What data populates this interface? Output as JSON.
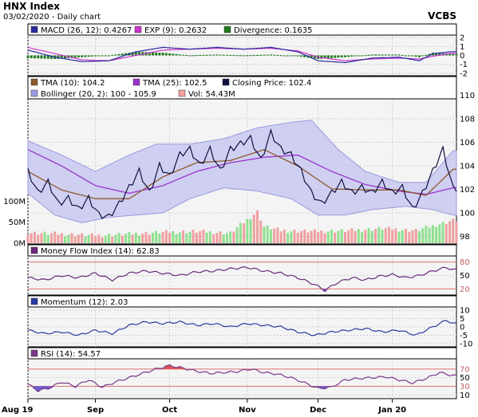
{
  "header": {
    "title": "HNX Index",
    "subtitle": "03/02/2020 - Daily chart",
    "brand": "VCBS"
  },
  "colors": {
    "panel_bg": "#f4f4f4",
    "border": "#000000",
    "grid": "#cfcfcf",
    "band_fill": "#c8c8f0",
    "band_line": "#9a9ae0",
    "macd": "#2a2aa0",
    "exp": "#cc33cc",
    "divergence": "#1f7a1f",
    "tma10": "#8b5a2b",
    "tma25": "#9933cc",
    "close": "#101040",
    "vol_up": "#90e090",
    "vol_down": "#f0a0a0",
    "mfi": "#6a2a7a",
    "momentum": "#2a3aa0",
    "rsi": "#7a3a8a",
    "rsi_over": "#e05050",
    "rsi_under": "#6a5ad0",
    "level_line": "#e07070"
  },
  "panels": [
    {
      "id": "macd",
      "legend": [
        {
          "text": "MACD (26, 12): 0.4267",
          "color": "#2a2aa0"
        },
        {
          "text": "EXP (9): 0.2632",
          "color": "#cc33cc"
        },
        {
          "text": "Divergence: 0.1635",
          "color": "#1f7a1f"
        }
      ],
      "axis": [
        {
          "label": "2",
          "value": 2
        },
        {
          "label": "1",
          "value": 1
        },
        {
          "label": "0",
          "value": 0
        },
        {
          "label": "-1",
          "value": -1
        },
        {
          "label": "-2",
          "value": -2
        }
      ],
      "ylim": [
        -2.1,
        2.1
      ]
    },
    {
      "id": "price",
      "legend": [
        {
          "text": "TMA (10): 104.2",
          "color": "#8b5a2b"
        },
        {
          "text": "TMA (25): 102.5",
          "color": "#9933cc"
        },
        {
          "text": "Closing Price: 102.4",
          "color": "#101040"
        },
        {
          "text": "Bollinger (20, 2): 100 - 105.9",
          "color": "#9a9ae0"
        },
        {
          "text": "Vol: 54.43M",
          "color": "#f0a0a0"
        }
      ],
      "axis": [
        {
          "label": "110",
          "value": 110
        },
        {
          "label": "108",
          "value": 108
        },
        {
          "label": "106",
          "value": 106
        },
        {
          "label": "104",
          "value": 104
        },
        {
          "label": "102",
          "value": 102
        },
        {
          "label": "100",
          "value": 100
        },
        {
          "label": "98",
          "value": 98
        }
      ],
      "vol_axis": [
        {
          "label": "100M",
          "value": 100
        },
        {
          "label": "50M",
          "value": 50
        },
        {
          "label": "0M",
          "value": 0
        }
      ],
      "ylim": [
        97.5,
        110.5
      ]
    },
    {
      "id": "mfi",
      "legend": [
        {
          "text": "Money Flow Index (14): 62.83",
          "color": "#6a2a7a"
        }
      ],
      "axis": [
        {
          "label": "80",
          "value": 80,
          "red": true
        },
        {
          "label": "50",
          "value": 50
        },
        {
          "label": "20",
          "value": 20,
          "red": true
        }
      ],
      "ylim": [
        10,
        90
      ]
    },
    {
      "id": "momentum",
      "legend": [
        {
          "text": "Momentum (12): 2.03",
          "color": "#2a3aa0"
        }
      ],
      "axis": [
        {
          "label": "10",
          "value": 10
        },
        {
          "label": "5",
          "value": 5
        },
        {
          "label": "0",
          "value": 0
        },
        {
          "label": "-5",
          "value": -5
        },
        {
          "label": "-10",
          "value": -10
        }
      ],
      "ylim": [
        -11,
        11
      ]
    },
    {
      "id": "rsi",
      "legend": [
        {
          "text": "RSI (14): 54.57",
          "color": "#7a3a8a"
        }
      ],
      "axis": [
        {
          "label": "70",
          "value": 70,
          "red": true
        },
        {
          "label": "50",
          "value": 50
        },
        {
          "label": "30",
          "value": 30,
          "red": true
        },
        {
          "label": "10",
          "value": 10
        }
      ],
      "ylim": [
        5,
        90
      ]
    }
  ],
  "x_axis": {
    "months": [
      {
        "label": "Aug 19",
        "day": 0
      },
      {
        "label": "Sep",
        "day": 20
      },
      {
        "label": "Oct",
        "day": 42
      },
      {
        "label": "Nov",
        "day": 65
      },
      {
        "label": "Dec",
        "day": 86
      },
      {
        "label": "Jan 20",
        "day": 108
      }
    ],
    "days": 128
  },
  "chart_data": {
    "type": "line",
    "title": "HNX Index",
    "subtitle": "03/02/2020 - Daily chart",
    "x_range_days": [
      0,
      127
    ],
    "price": {
      "close_keypoints": [
        [
          0,
          104
        ],
        [
          3,
          102
        ],
        [
          6,
          103
        ],
        [
          9,
          101
        ],
        [
          12,
          101.5
        ],
        [
          15,
          100.5
        ],
        [
          18,
          101.5
        ],
        [
          21,
          100
        ],
        [
          24,
          99.8
        ],
        [
          27,
          101
        ],
        [
          30,
          102.5
        ],
        [
          33,
          104
        ],
        [
          36,
          102
        ],
        [
          39,
          104.5
        ],
        [
          42,
          103.5
        ],
        [
          45,
          105.5
        ],
        [
          48,
          106
        ],
        [
          51,
          104.5
        ],
        [
          54,
          106
        ],
        [
          57,
          104
        ],
        [
          60,
          106
        ],
        [
          63,
          106.5
        ],
        [
          66,
          107
        ],
        [
          69,
          105
        ],
        [
          72,
          107.5
        ],
        [
          75,
          106
        ],
        [
          78,
          105.5
        ],
        [
          81,
          104
        ],
        [
          84,
          102
        ],
        [
          87,
          101
        ],
        [
          90,
          102
        ],
        [
          93,
          103
        ],
        [
          96,
          102
        ],
        [
          99,
          102.5
        ],
        [
          102,
          102
        ],
        [
          105,
          103
        ],
        [
          108,
          102
        ],
        [
          111,
          102.5
        ],
        [
          114,
          100.5
        ],
        [
          117,
          102
        ],
        [
          120,
          104
        ],
        [
          123,
          106
        ],
        [
          126,
          102.4
        ]
      ],
      "tma10_keypoints": [
        [
          0,
          104
        ],
        [
          10,
          102.3
        ],
        [
          20,
          101.5
        ],
        [
          30,
          101.5
        ],
        [
          40,
          103.5
        ],
        [
          50,
          104.8
        ],
        [
          60,
          105
        ],
        [
          70,
          106
        ],
        [
          80,
          104.5
        ],
        [
          90,
          102.4
        ],
        [
          100,
          102.3
        ],
        [
          110,
          102.3
        ],
        [
          118,
          101.8
        ],
        [
          126,
          104.2
        ]
      ],
      "tma25_keypoints": [
        [
          0,
          106
        ],
        [
          10,
          104.5
        ],
        [
          20,
          102.7
        ],
        [
          30,
          102
        ],
        [
          40,
          102.7
        ],
        [
          50,
          104
        ],
        [
          60,
          104.8
        ],
        [
          70,
          105.3
        ],
        [
          80,
          105.5
        ],
        [
          90,
          104
        ],
        [
          100,
          102.8
        ],
        [
          110,
          102.2
        ],
        [
          118,
          101.9
        ],
        [
          126,
          102.5
        ]
      ],
      "bollinger_upper_keypoints": [
        [
          0,
          106.8
        ],
        [
          10,
          105.5
        ],
        [
          20,
          104
        ],
        [
          30,
          105.5
        ],
        [
          38,
          106.5
        ],
        [
          48,
          106.5
        ],
        [
          58,
          107
        ],
        [
          68,
          108
        ],
        [
          78,
          108.5
        ],
        [
          84,
          108.7
        ],
        [
          92,
          106
        ],
        [
          100,
          104
        ],
        [
          110,
          103
        ],
        [
          118,
          103
        ],
        [
          126,
          105.9
        ]
      ],
      "bollinger_lower_keypoints": [
        [
          0,
          102
        ],
        [
          8,
          100
        ],
        [
          16,
          99.3
        ],
        [
          24,
          99.8
        ],
        [
          32,
          100
        ],
        [
          40,
          100.2
        ],
        [
          48,
          101.5
        ],
        [
          58,
          102.5
        ],
        [
          68,
          102.2
        ],
        [
          78,
          101.5
        ],
        [
          86,
          100
        ],
        [
          94,
          100
        ],
        [
          102,
          100.5
        ],
        [
          112,
          100.8
        ],
        [
          120,
          100.5
        ],
        [
          126,
          100
        ]
      ],
      "volume_keypoints_m": [
        [
          0,
          25
        ],
        [
          10,
          22
        ],
        [
          20,
          18
        ],
        [
          30,
          22
        ],
        [
          40,
          26
        ],
        [
          50,
          28
        ],
        [
          60,
          24
        ],
        [
          68,
          75
        ],
        [
          70,
          40
        ],
        [
          75,
          30
        ],
        [
          85,
          28
        ],
        [
          95,
          30
        ],
        [
          105,
          35
        ],
        [
          115,
          30
        ],
        [
          126,
          54.43
        ]
      ],
      "ylim": [
        98,
        110
      ]
    },
    "macd": {
      "macd_keypoints": [
        [
          0,
          0.6
        ],
        [
          8,
          -0.2
        ],
        [
          16,
          -0.7
        ],
        [
          24,
          -0.6
        ],
        [
          32,
          0.4
        ],
        [
          40,
          0.9
        ],
        [
          48,
          0.7
        ],
        [
          56,
          0.9
        ],
        [
          64,
          0.7
        ],
        [
          72,
          0.9
        ],
        [
          80,
          0.4
        ],
        [
          86,
          -0.6
        ],
        [
          94,
          -0.8
        ],
        [
          102,
          -0.3
        ],
        [
          110,
          -0.2
        ],
        [
          116,
          -0.6
        ],
        [
          120,
          0.2
        ],
        [
          126,
          0.4267
        ]
      ],
      "exp_keypoints": [
        [
          0,
          0.9
        ],
        [
          8,
          0.2
        ],
        [
          16,
          -0.5
        ],
        [
          24,
          -0.6
        ],
        [
          32,
          0
        ],
        [
          40,
          0.6
        ],
        [
          48,
          0.7
        ],
        [
          56,
          0.8
        ],
        [
          64,
          0.7
        ],
        [
          72,
          0.8
        ],
        [
          80,
          0.5
        ],
        [
          86,
          -0.2
        ],
        [
          94,
          -0.6
        ],
        [
          102,
          -0.4
        ],
        [
          110,
          -0.3
        ],
        [
          116,
          -0.4
        ],
        [
          120,
          -0.1
        ],
        [
          126,
          0.2632
        ]
      ],
      "ylim": [
        -2,
        2
      ]
    },
    "mfi": {
      "keypoints": [
        [
          0,
          45
        ],
        [
          5,
          40
        ],
        [
          10,
          50
        ],
        [
          15,
          45
        ],
        [
          20,
          55
        ],
        [
          25,
          40
        ],
        [
          30,
          55
        ],
        [
          35,
          60
        ],
        [
          40,
          55
        ],
        [
          45,
          50
        ],
        [
          50,
          58
        ],
        [
          55,
          60
        ],
        [
          60,
          65
        ],
        [
          65,
          68
        ],
        [
          70,
          60
        ],
        [
          75,
          55
        ],
        [
          80,
          45
        ],
        [
          85,
          30
        ],
        [
          88,
          17
        ],
        [
          92,
          35
        ],
        [
          96,
          45
        ],
        [
          100,
          40
        ],
        [
          104,
          48
        ],
        [
          108,
          52
        ],
        [
          112,
          45
        ],
        [
          116,
          50
        ],
        [
          120,
          60
        ],
        [
          124,
          68
        ],
        [
          126,
          62.83
        ]
      ],
      "levels": [
        80,
        50,
        20
      ]
    },
    "momentum": {
      "keypoints": [
        [
          0,
          -2
        ],
        [
          5,
          -4
        ],
        [
          10,
          -3
        ],
        [
          15,
          -5
        ],
        [
          20,
          -2
        ],
        [
          25,
          -4
        ],
        [
          30,
          1
        ],
        [
          35,
          3
        ],
        [
          40,
          2
        ],
        [
          45,
          3
        ],
        [
          50,
          1
        ],
        [
          55,
          2
        ],
        [
          60,
          0
        ],
        [
          65,
          2
        ],
        [
          70,
          1
        ],
        [
          75,
          0
        ],
        [
          80,
          -3
        ],
        [
          85,
          -5
        ],
        [
          90,
          -3
        ],
        [
          95,
          -2
        ],
        [
          100,
          -1
        ],
        [
          105,
          -3
        ],
        [
          110,
          -2
        ],
        [
          115,
          -5
        ],
        [
          120,
          0
        ],
        [
          124,
          4
        ],
        [
          126,
          2.03
        ]
      ],
      "levels": [
        10,
        5,
        0,
        -5,
        -10
      ]
    },
    "rsi": {
      "keypoints": [
        [
          0,
          35
        ],
        [
          3,
          20
        ],
        [
          6,
          25
        ],
        [
          10,
          40
        ],
        [
          14,
          30
        ],
        [
          18,
          45
        ],
        [
          22,
          28
        ],
        [
          26,
          40
        ],
        [
          30,
          50
        ],
        [
          34,
          60
        ],
        [
          38,
          70
        ],
        [
          42,
          78
        ],
        [
          46,
          72
        ],
        [
          50,
          65
        ],
        [
          54,
          60
        ],
        [
          58,
          62
        ],
        [
          62,
          64
        ],
        [
          66,
          70
        ],
        [
          70,
          62
        ],
        [
          74,
          58
        ],
        [
          78,
          50
        ],
        [
          82,
          38
        ],
        [
          86,
          25
        ],
        [
          90,
          28
        ],
        [
          94,
          45
        ],
        [
          98,
          48
        ],
        [
          102,
          50
        ],
        [
          106,
          52
        ],
        [
          110,
          45
        ],
        [
          114,
          38
        ],
        [
          118,
          48
        ],
        [
          122,
          62
        ],
        [
          126,
          54.57
        ]
      ],
      "levels": [
        70,
        50,
        30
      ]
    }
  }
}
